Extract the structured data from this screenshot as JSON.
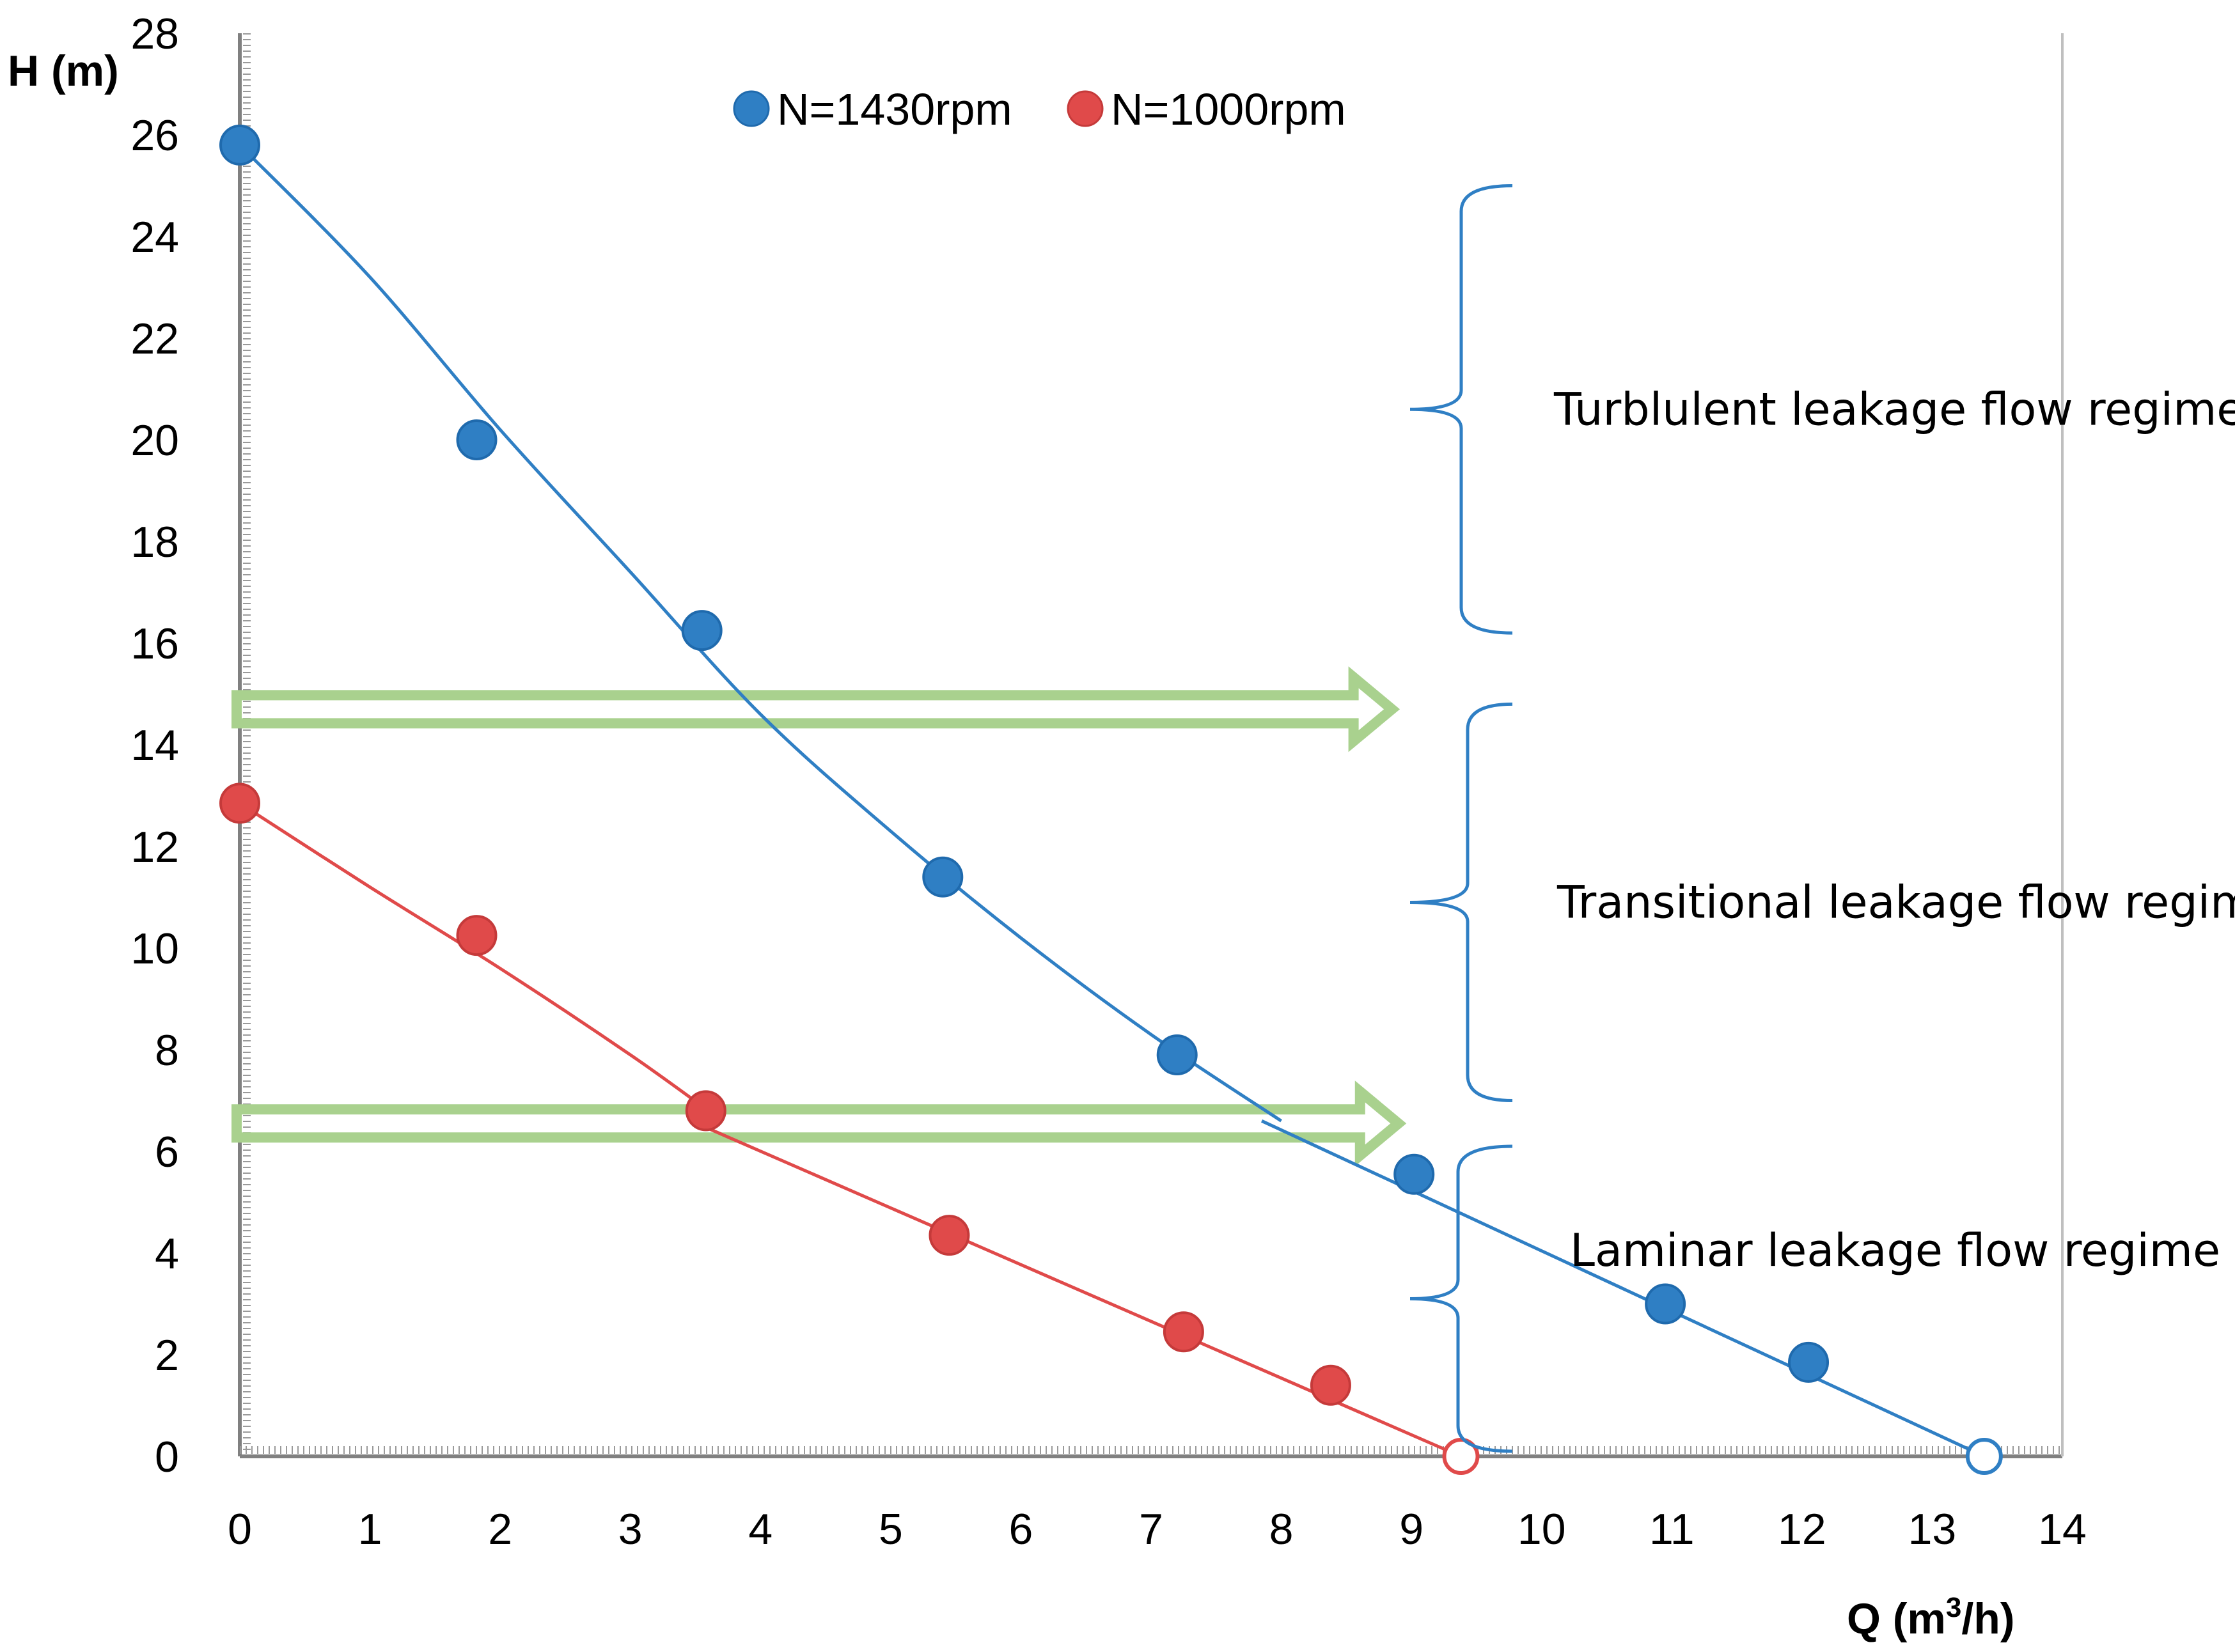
{
  "chart_data": {
    "type": "scatter",
    "title": "",
    "xlabel": "Q (m³/h)",
    "xlabel_base": "Q (m",
    "xlabel_sup": "3",
    "xlabel_tail": "/h)",
    "ylabel": "H (m)",
    "xlim": [
      0,
      14
    ],
    "ylim": [
      0,
      28
    ],
    "xticks": [
      "0",
      "1",
      "2",
      "3",
      "4",
      "5",
      "6",
      "7",
      "8",
      "9",
      "10",
      "11",
      "12",
      "13",
      "14"
    ],
    "yticks": [
      "0",
      "2",
      "4",
      "6",
      "8",
      "10",
      "12",
      "14",
      "16",
      "18",
      "20",
      "22",
      "24",
      "26",
      "28"
    ],
    "grid": false,
    "legend_position": "top-center",
    "series": [
      {
        "name": "N=1430rpm",
        "color": "#2F7FC4",
        "points": [
          {
            "x": 0,
            "y": 25.8
          },
          {
            "x": 1.82,
            "y": 20.0
          },
          {
            "x": 3.55,
            "y": 16.25
          },
          {
            "x": 5.4,
            "y": 11.4
          },
          {
            "x": 7.2,
            "y": 7.9
          },
          {
            "x": 9.02,
            "y": 5.55
          },
          {
            "x": 10.95,
            "y": 3.0
          },
          {
            "x": 12.05,
            "y": 1.85
          }
        ],
        "open_points": [
          {
            "x": 13.4,
            "y": 0
          }
        ],
        "curve_upper": [
          {
            "x": 0,
            "y": 25.8
          },
          {
            "x": 1.0,
            "y": 23.2
          },
          {
            "x": 2.0,
            "y": 20.2
          },
          {
            "x": 3.0,
            "y": 17.4
          },
          {
            "x": 4.0,
            "y": 14.6
          },
          {
            "x": 5.0,
            "y": 12.3
          },
          {
            "x": 6.0,
            "y": 10.2
          },
          {
            "x": 7.0,
            "y": 8.3
          },
          {
            "x": 8.0,
            "y": 6.6
          }
        ],
        "curve_lower": [
          {
            "x": 7.85,
            "y": 6.6
          },
          {
            "x": 13.4,
            "y": 0
          }
        ]
      },
      {
        "name": "N=1000rpm",
        "color": "#E04A4A",
        "points": [
          {
            "x": 0,
            "y": 12.85
          },
          {
            "x": 1.82,
            "y": 10.25
          },
          {
            "x": 3.58,
            "y": 6.8
          },
          {
            "x": 5.45,
            "y": 4.35
          },
          {
            "x": 7.25,
            "y": 2.45
          },
          {
            "x": 8.38,
            "y": 1.4
          }
        ],
        "open_points": [
          {
            "x": 9.38,
            "y": 0
          }
        ],
        "curve_upper": [
          {
            "x": 0,
            "y": 12.85
          },
          {
            "x": 1.0,
            "y": 11.2
          },
          {
            "x": 2.0,
            "y": 9.6
          },
          {
            "x": 3.0,
            "y": 7.9
          },
          {
            "x": 3.6,
            "y": 6.8
          }
        ],
        "curve_lower": [
          {
            "x": 3.6,
            "y": 6.45
          },
          {
            "x": 9.38,
            "y": 0
          }
        ]
      }
    ],
    "annotations": [
      {
        "text": "Turblulent leakage flow regime",
        "y_from": 16.2,
        "y_to": 25.0
      },
      {
        "text": "Transitional leakage flow regime",
        "y_from": 7.0,
        "y_to": 14.8
      },
      {
        "text": "Laminar leakage flow regime",
        "y_from": 0.1,
        "y_to": 6.1
      }
    ],
    "boundary_arrows": [
      {
        "y": 14.7,
        "x_from": 0,
        "x_to": 8.85
      },
      {
        "y": 6.55,
        "x_from": 0,
        "x_to": 8.9
      }
    ],
    "arrow_color": "#A9D18E"
  }
}
